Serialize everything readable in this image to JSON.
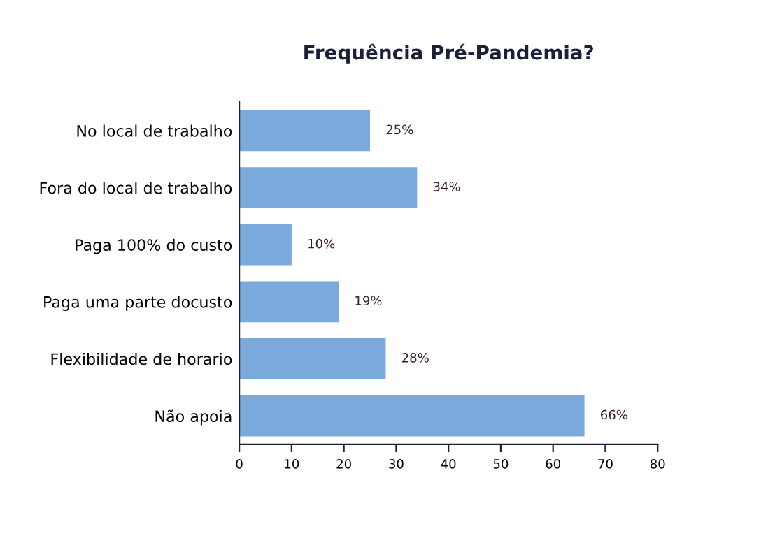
{
  "chart_data": {
    "type": "bar",
    "orientation": "horizontal",
    "title": "Frequência Pré-Pandemia?",
    "categories": [
      "No local de trabalho",
      "Fora do local de trabalho",
      "Paga 100% do custo",
      "Paga uma parte docusto",
      "Flexibilidade de horario",
      "Não apoia"
    ],
    "values": [
      25,
      34,
      10,
      19,
      28,
      66
    ],
    "value_labels": [
      "25%",
      "34%",
      "10%",
      "19%",
      "28%",
      "66%"
    ],
    "color": "#7aaadb",
    "xlim": [
      0,
      80
    ],
    "xticks": [
      0,
      10,
      20,
      30,
      40,
      50,
      60,
      70,
      80
    ],
    "grid": false,
    "legend": false
  }
}
